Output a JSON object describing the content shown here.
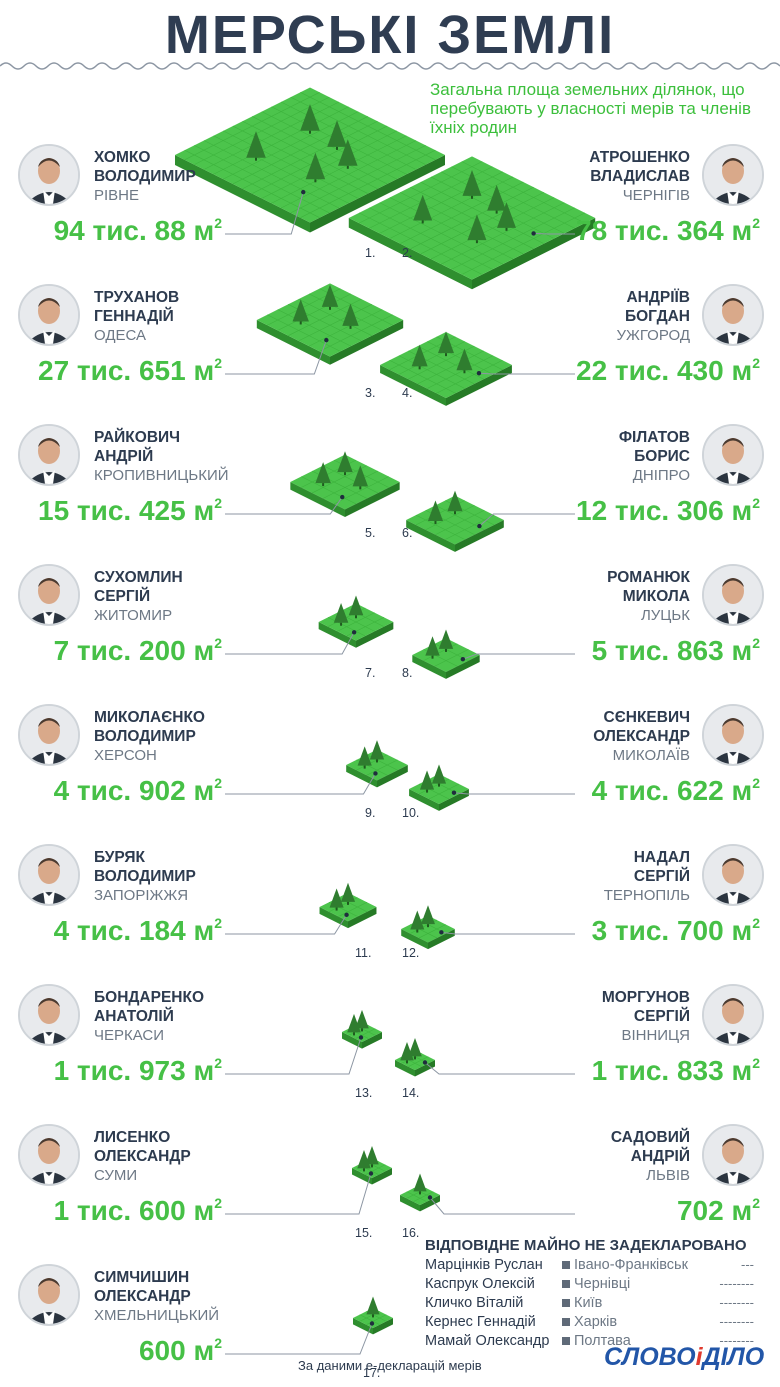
{
  "title": "МЕРСЬКІ ЗЕМЛІ",
  "subtitle": "Загальна площа земельних ділянок, що перебувають у власності мерів та членів їхніх родин",
  "unit_superscript": "2",
  "colors": {
    "land": "#4cc44c",
    "land_side": "#2f8f2f",
    "value": "#46c046",
    "title": "#2f3d52"
  },
  "chart_data": {
    "type": "bar",
    "ylabel": "",
    "items": [
      {
        "rank": "1.",
        "surname": "ХОМКО",
        "name": "ВОЛОДИМИР",
        "city": "РІВНЕ",
        "value_label": "94 тис. 88 м",
        "value_m2": 94088
      },
      {
        "rank": "2.",
        "surname": "АТРОШЕНКО",
        "name": "ВЛАДИСЛАВ",
        "city": "ЧЕРНІГІВ",
        "value_label": "78 тис. 364 м",
        "value_m2": 78364
      },
      {
        "rank": "3.",
        "surname": "ТРУХАНОВ",
        "name": "ГЕННАДІЙ",
        "city": "ОДЕСА",
        "value_label": "27 тис. 651 м",
        "value_m2": 27651
      },
      {
        "rank": "4.",
        "surname": "АНДРІЇВ",
        "name": "БОГДАН",
        "city": "УЖГОРОД",
        "value_label": "22 тис. 430 м",
        "value_m2": 22430
      },
      {
        "rank": "5.",
        "surname": "РАЙКОВИЧ",
        "name": "АНДРІЙ",
        "city": "КРОПИВНИЦЬКИЙ",
        "value_label": "15 тис. 425 м",
        "value_m2": 15425
      },
      {
        "rank": "6.",
        "surname": "ФІЛАТОВ",
        "name": "БОРИС",
        "city": "ДНІПРО",
        "value_label": "12 тис. 306 м",
        "value_m2": 12306
      },
      {
        "rank": "7.",
        "surname": "СУХОМЛИН",
        "name": "СЕРГІЙ",
        "city": "ЖИТОМИР",
        "value_label": "7 тис. 200 м",
        "value_m2": 7200
      },
      {
        "rank": "8.",
        "surname": "РОМАНЮК",
        "name": "МИКОЛА",
        "city": "ЛУЦЬК",
        "value_label": "5 тис. 863 м",
        "value_m2": 5863
      },
      {
        "rank": "9.",
        "surname": "МИКОЛАЄНКО",
        "name": "ВОЛОДИМИР",
        "city": "ХЕРСОН",
        "value_label": "4 тис. 902 м",
        "value_m2": 4902
      },
      {
        "rank": "10.",
        "surname": "СЄНКЕВИЧ",
        "name": "ОЛЕКСАНДР",
        "city": "МИКОЛАЇВ",
        "value_label": "4 тис. 622 м",
        "value_m2": 4622
      },
      {
        "rank": "11.",
        "surname": "БУРЯК",
        "name": "ВОЛОДИМИР",
        "city": "ЗАПОРІЖЖЯ",
        "value_label": "4 тис. 184 м",
        "value_m2": 4184
      },
      {
        "rank": "12.",
        "surname": "НАДАЛ",
        "name": "СЕРГІЙ",
        "city": "ТЕРНОПІЛЬ",
        "value_label": "3 тис. 700 м",
        "value_m2": 3700
      },
      {
        "rank": "13.",
        "surname": "БОНДАРЕНКО",
        "name": "АНАТОЛІЙ",
        "city": "ЧЕРКАСИ",
        "value_label": "1 тис. 973 м",
        "value_m2": 1973
      },
      {
        "rank": "14.",
        "surname": "МОРГУНОВ",
        "name": "СЕРГІЙ",
        "city": "ВІННИЦЯ",
        "value_label": "1 тис. 833 м",
        "value_m2": 1833
      },
      {
        "rank": "15.",
        "surname": "ЛИСЕНКО",
        "name": "ОЛЕКСАНДР",
        "city": "СУМИ",
        "value_label": "1 тис. 600 м",
        "value_m2": 1600
      },
      {
        "rank": "16.",
        "surname": "САДОВИЙ",
        "name": "АНДРІЙ",
        "city": "ЛЬВІВ",
        "value_label": "702 м",
        "value_m2": 702
      },
      {
        "rank": "17.",
        "surname": "СИМЧИШИН",
        "name": "ОЛЕКСАНДР",
        "city": "ХМЕЛЬНИЦЬКИЙ",
        "value_label": "600 м",
        "value_m2": 600
      }
    ]
  },
  "not_declared": {
    "title": "ВІДПОВІДНЕ МАЙНО НЕ ЗАДЕКЛАРОВАНО",
    "rows": [
      {
        "name": "Марцінків Руслан",
        "city": "Івано-Франківськ",
        "dash": "---"
      },
      {
        "name": "Каспрук Олексій",
        "city": "Чернівці",
        "dash": "--------"
      },
      {
        "name": "Кличко Віталій",
        "city": "Київ",
        "dash": "--------"
      },
      {
        "name": "Кернес Геннадій",
        "city": "Харків",
        "dash": "--------"
      },
      {
        "name": "Мамай Олександр",
        "city": "Полтава",
        "dash": "--------"
      }
    ]
  },
  "source": "За даними е-декларацій мерів",
  "logo": {
    "part1": "СЛОВО",
    "sep": "і",
    "part2": "ДІЛО"
  }
}
